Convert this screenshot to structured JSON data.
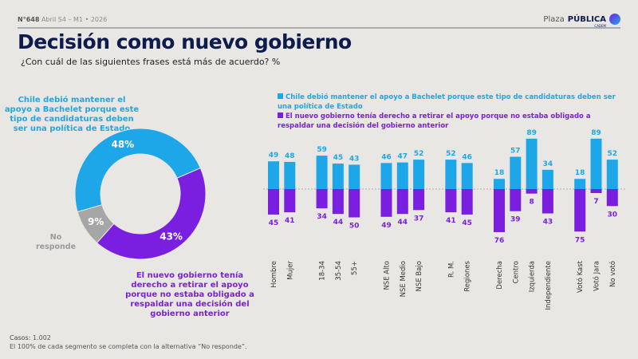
{
  "header": {
    "issue": "N°648",
    "period": "Abril S4 – M1 • 2026",
    "logo": {
      "name": "Plaza",
      "brand": "PÚBLICA",
      "sub": "CADEM"
    },
    "title": "Decisión como nuevo gobierno",
    "subtitle": "¿Con cuál de las siguientes frases está más de acuerdo? %"
  },
  "colors": {
    "blue": "#1ea7e8",
    "purple": "#7a1fe0",
    "gray": "#a6a6a6",
    "navy": "#0e1b4d"
  },
  "chart_data": [
    {
      "type": "pie",
      "variant": "donut",
      "labels": [
        "Chile debió mantener el apoyo a Bachelet porque este tipo de candidaturas deben ser una política de Estado",
        "El nuevo gobierno tenía derecho a retirar el apoyo porque no estaba obligado a respaldar una decisión del gobierno anterior",
        "No responde"
      ],
      "values": [
        48,
        43,
        9
      ],
      "value_labels": [
        "48%",
        "43%",
        "9%"
      ]
    },
    {
      "type": "bar",
      "variant": "diverging",
      "categories": [
        "Hombre",
        "Mujer",
        "18-34",
        "35-54",
        "55+",
        "NSE Alto",
        "NSE Medio",
        "NSE Bajo",
        "R. M.",
        "Regiones",
        "Derecha",
        "Centro",
        "Izquierda",
        "Independiente",
        "Votó Kast",
        "Votó Jara",
        "No votó"
      ],
      "groups": [
        [
          0,
          1
        ],
        [
          2,
          3,
          4
        ],
        [
          5,
          6,
          7
        ],
        [
          8,
          9
        ],
        [
          10,
          11,
          12,
          13
        ],
        [
          14,
          15,
          16
        ]
      ],
      "series": [
        {
          "name": "Chile debió mantener el apoyo a Bachelet porque este tipo de candidaturas deben ser una política de Estado",
          "values": [
            49,
            48,
            59,
            45,
            43,
            46,
            47,
            52,
            52,
            46,
            18,
            57,
            89,
            34,
            18,
            89,
            52
          ]
        },
        {
          "name": "El nuevo gobierno tenía derecho a retirar el apoyo porque no estaba obligado a respaldar una decisión del gobierno anterior",
          "values": [
            45,
            41,
            34,
            44,
            50,
            49,
            44,
            37,
            41,
            45,
            76,
            39,
            8,
            43,
            75,
            7,
            30
          ]
        }
      ],
      "legend": "top"
    }
  ],
  "footer": {
    "cases_label": "Casos:",
    "cases": "1.002",
    "note": "El 100% de cada segmento se completa con la alternativa “No responde”."
  }
}
